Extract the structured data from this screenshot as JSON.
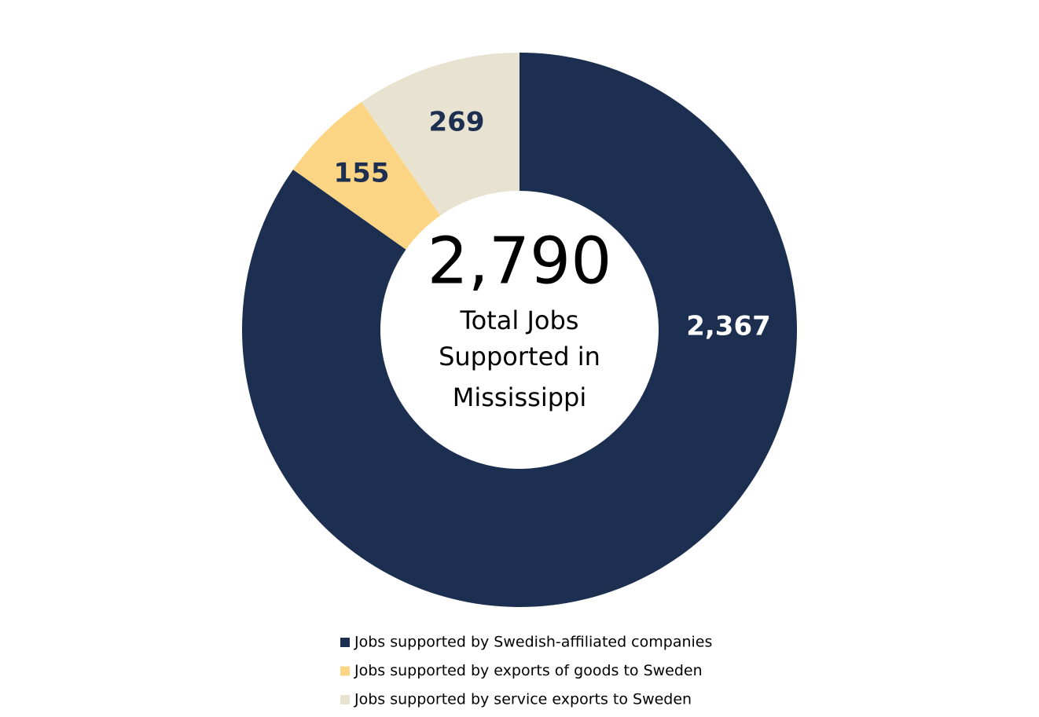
{
  "chart_data": {
    "type": "donut",
    "categories": [
      "Jobs supported by Swedish-affiliated companies",
      "Jobs supported by exports of goods to Sweden",
      "Jobs supported by service exports to Sweden"
    ],
    "values": [
      2367,
      155,
      269
    ],
    "value_labels": [
      "2,367",
      "155",
      "269"
    ],
    "colors": [
      "#1c2f50",
      "#fcd584",
      "#e8e3d0"
    ],
    "label_colors": [
      "#ffffff",
      "#1c2f50",
      "#1c2f50"
    ],
    "total": 2790,
    "total_label": "2,790",
    "center_text": [
      "Total Jobs",
      "Supported in",
      "Mississippi"
    ]
  }
}
